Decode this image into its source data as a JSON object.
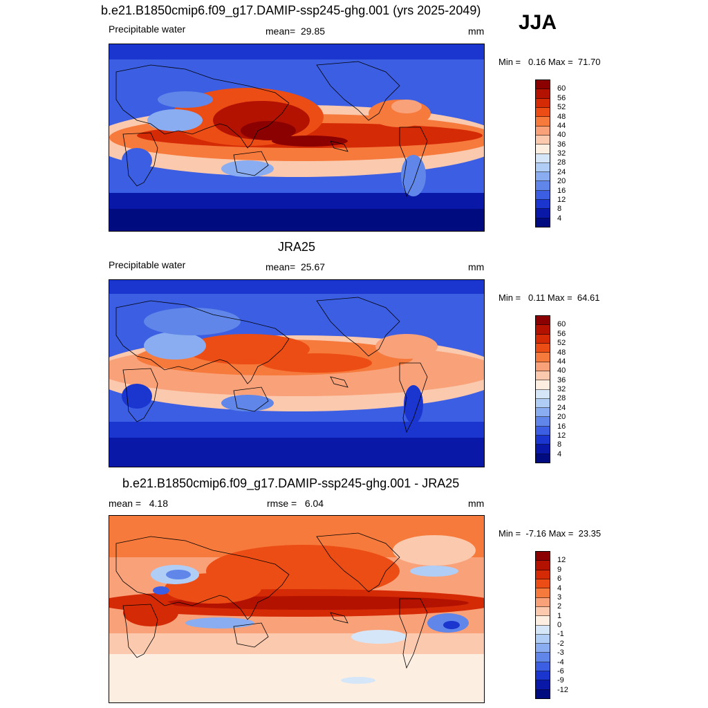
{
  "season": "JJA",
  "panels": [
    {
      "title": "b.e21.B1850cmip6.f09_g17.DAMIP-ssp245-ghg.001 (yrs 2025-2049)",
      "left_label": "Precipitable water",
      "center_label": "mean=  29.85",
      "units": "mm",
      "minmax": "Min =   0.16 Max =  71.70",
      "colorbar": {
        "labels": [
          "60",
          "56",
          "52",
          "48",
          "44",
          "40",
          "36",
          "32",
          "28",
          "24",
          "20",
          "16",
          "12",
          "8",
          "4"
        ],
        "colors": [
          "#8b0000",
          "#b31200",
          "#d42a06",
          "#ec4d14",
          "#f67a3c",
          "#f9a27a",
          "#fbc9ae",
          "#fdeee2",
          "#d6e6f9",
          "#b0cdf5",
          "#89adf0",
          "#5f86e8",
          "#3b5ee2",
          "#1b35cf",
          "#0a18a8",
          "#000b80"
        ]
      }
    },
    {
      "title": "JRA25",
      "left_label": "Precipitable water",
      "center_label": "mean=  25.67",
      "units": "mm",
      "minmax": "Min =   0.11 Max =  64.61",
      "colorbar": {
        "labels": [
          "60",
          "56",
          "52",
          "48",
          "44",
          "40",
          "36",
          "32",
          "28",
          "24",
          "20",
          "16",
          "12",
          "8",
          "4"
        ],
        "colors": [
          "#8b0000",
          "#b31200",
          "#d42a06",
          "#ec4d14",
          "#f67a3c",
          "#f9a27a",
          "#fbc9ae",
          "#fdeee2",
          "#d6e6f9",
          "#b0cdf5",
          "#89adf0",
          "#5f86e8",
          "#3b5ee2",
          "#1b35cf",
          "#0a18a8",
          "#000b80"
        ]
      }
    },
    {
      "title": "b.e21.B1850cmip6.f09_g17.DAMIP-ssp245-ghg.001 - JRA25",
      "left_label": "mean =   4.18",
      "center_label": "rmse =   6.04",
      "units": "mm",
      "minmax": "Min =  -7.16 Max =  23.35",
      "colorbar": {
        "labels": [
          "12",
          "9",
          "6",
          "4",
          "3",
          "2",
          "1",
          "0",
          "-1",
          "-2",
          "-3",
          "-4",
          "-6",
          "-9",
          "-12"
        ],
        "colors": [
          "#8b0000",
          "#b31200",
          "#d42a06",
          "#ec4d14",
          "#f67a3c",
          "#f9a27a",
          "#fbc9ae",
          "#fdeee2",
          "#d6e6f9",
          "#b0cdf5",
          "#89adf0",
          "#5f86e8",
          "#3b5ee2",
          "#1b35cf",
          "#0a18a8",
          "#000b80"
        ]
      }
    }
  ]
}
